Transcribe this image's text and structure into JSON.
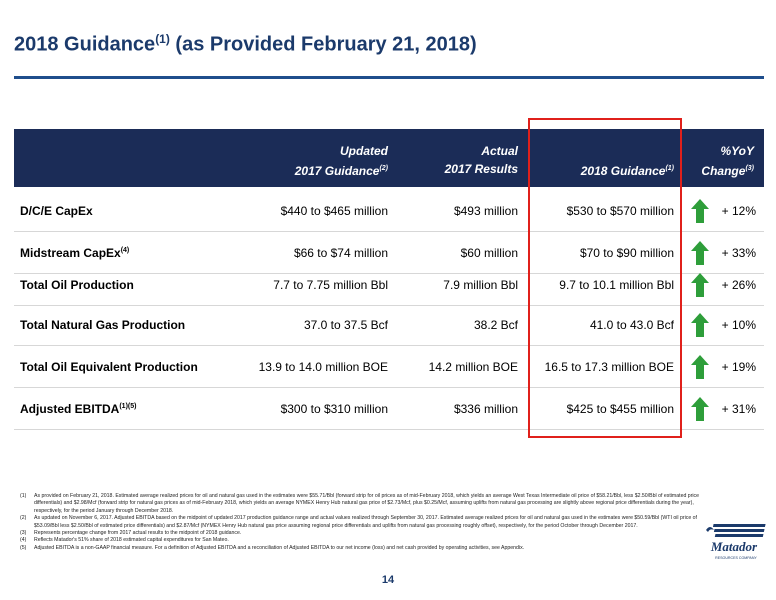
{
  "title": {
    "main": "2018 Guidance",
    "sup": "(1)",
    "suffix": " (as Provided February 21, 2018)"
  },
  "table": {
    "headers": {
      "updated_line1": "Updated",
      "updated_line2": "2017 Guidance",
      "updated_sup": "(2)",
      "actual_line1": "Actual",
      "actual_line2": "2017 Results",
      "guidance": "2018 Guidance",
      "guidance_sup": "(1)",
      "yoy_line1": "%YoY",
      "yoy_line2": "Change",
      "yoy_sup": "(3)"
    },
    "rows": [
      {
        "label": "D/C/E CapEx",
        "sup": "",
        "updated": "$440 to $465 million",
        "actual": "$493 million",
        "guidance": "$530 to $570 million",
        "yoy": "+ 12%"
      },
      {
        "label": "Midstream CapEx",
        "sup": "(4)",
        "updated": "$66 to $74 million",
        "actual": "$60 million",
        "guidance": "$70 to $90 million",
        "yoy": "+ 33%"
      },
      {
        "label": "Total Oil Production",
        "sup": "",
        "updated": "7.7 to 7.75 million Bbl",
        "actual": "7.9 million Bbl",
        "guidance": "9.7 to 10.1 million Bbl",
        "yoy": "+ 26%"
      },
      {
        "label": "Total Natural Gas Production",
        "sup": "",
        "updated": "37.0 to 37.5 Bcf",
        "actual": "38.2 Bcf",
        "guidance": "41.0 to 43.0 Bcf",
        "yoy": "+ 10%"
      },
      {
        "label": "Total Oil Equivalent Production",
        "sup": "",
        "updated": "13.9 to 14.0 million BOE",
        "actual": "14.2 million BOE",
        "guidance": "16.5 to 17.3 million BOE",
        "yoy": "+ 19%"
      },
      {
        "label": "Adjusted EBITDA",
        "sup": "(1)(5)",
        "updated": "$300 to $310 million",
        "actual": "$336 million",
        "guidance": "$425 to $455 million",
        "yoy": "+ 31%"
      }
    ]
  },
  "colors": {
    "header_bg": "#1b2c57",
    "title": "#1b3a6b",
    "arrow_green": "#2e9e3a",
    "highlight_red": "#e0201b"
  },
  "footnotes": [
    {
      "num": "(1)",
      "text": "As provided on February 21, 2018. Estimated average realized prices for oil and natural gas used in the estimates were $55.71/Bbl (forward strip for oil prices as of mid-February 2018, which yields an average West Texas Intermediate oil price of $58.21/Bbl, less $2.50/Bbl of estimated price differentials) and $2.98/Mcf (forward strip for natural gas prices as of mid-February 2018, which yields an average NYMEX Henry Hub natural gas price of $2.73/Mcf, plus $0.25/Mcf, assuming uplifts from natural gas processing are slightly above regional price differentials during the year), respectively, for the period January through December 2018."
    },
    {
      "num": "(2)",
      "text": "As updated on November 6, 2017. Adjusted EBITDA based on the midpoint of updated 2017 production guidance range and actual values realized through September 30, 2017. Estimated average realized prices for oil and natural gas used in the estimates were $50.59/Bbl (WTI oil price of $53.09/Bbl less $2.50/Bbl of estimated price differentials) and $2.87/Mcf (NYMEX Henry Hub natural gas price assuming regional price differentials and uplifts from natural gas processing roughly offset), respectively, for the period October through December 2017."
    },
    {
      "num": "(3)",
      "text": "Represents percentage change from 2017 actual results to the midpoint of 2018 guidance."
    },
    {
      "num": "(4)",
      "text": "Reflects Matador's 51% share of 2018 estimated capital expenditures for San Mateo."
    },
    {
      "num": "(5)",
      "text": "Adjusted EBITDA is a non-GAAP financial measure. For a definition of Adjusted EBITDA and a reconciliation of Adjusted EBITDA to our net income (loss) and net cash provided by operating activities, see Appendix."
    }
  ],
  "logo": {
    "name": "Matador",
    "tagline": "RESOURCES COMPANY"
  },
  "page_number": "14"
}
